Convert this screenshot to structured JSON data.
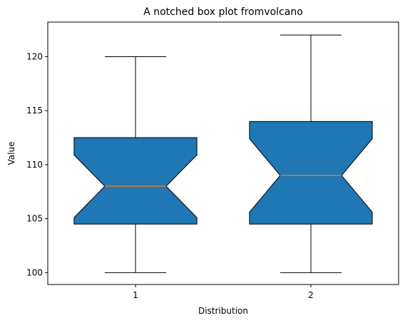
{
  "chart_data": {
    "type": "boxplot",
    "title": "A notched box plot fromvolcano",
    "xlabel": "Distribution",
    "ylabel": "Value",
    "ylim": [
      98.9,
      123.2
    ],
    "yticks": [
      "100",
      "105",
      "110",
      "115",
      "120"
    ],
    "categories": [
      "1",
      "2"
    ],
    "notched": true,
    "patch_artist": true,
    "box_color": "#1f77b4",
    "median_color": "#ff7f0e",
    "boxes": [
      {
        "label": "1",
        "whislo": 100,
        "q1": 104.5,
        "med": 108,
        "q3": 112.5,
        "whishi": 120,
        "notch_lo": 105.1,
        "notch_hi": 110.9
      },
      {
        "label": "2",
        "whislo": 100,
        "q1": 104.5,
        "med": 109,
        "q3": 114,
        "whishi": 122,
        "notch_lo": 105.6,
        "notch_hi": 112.4
      }
    ],
    "grid": false,
    "legend": false
  }
}
